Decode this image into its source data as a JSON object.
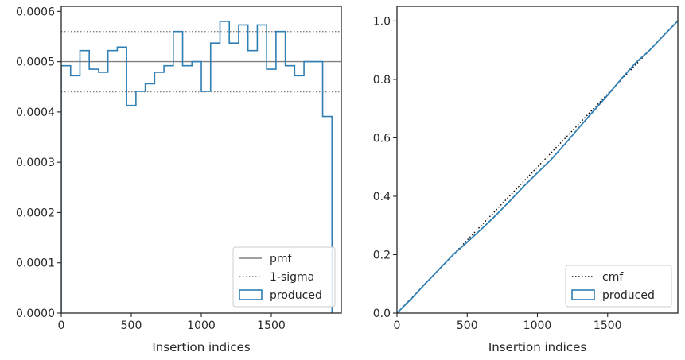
{
  "chart_data": [
    {
      "type": "step",
      "xlabel": "Insertion indices",
      "ylabel": "",
      "xlim": [
        0,
        2000
      ],
      "ylim": [
        0,
        0.00061
      ],
      "xticks": [
        0,
        500,
        1000,
        1500
      ],
      "xtick_labels": [
        "0",
        "500",
        "1000",
        "1500"
      ],
      "yticks": [
        0,
        0.0001,
        0.0002,
        0.0003,
        0.0004,
        0.0005,
        0.0006
      ],
      "ytick_labels": [
        "0.0000",
        "0.0001",
        "0.0002",
        "0.0003",
        "0.0004",
        "0.0005",
        "0.0006"
      ],
      "grid": false,
      "legend_position": "lower right",
      "reference_lines": [
        {
          "name": "pmf",
          "value": 0.0005,
          "color": "#808080",
          "style": "solid"
        },
        {
          "name": "1-sigma",
          "values": [
            0.00044,
            0.00056
          ],
          "color": "#808080",
          "style": "dotted"
        }
      ],
      "series": [
        {
          "name": "produced",
          "color": "#2f7fb5",
          "bin_width": 66.67,
          "values": [
            0.000492,
            0.000472,
            0.000522,
            0.000485,
            0.000479,
            0.000522,
            0.000529,
            0.000413,
            0.000441,
            0.000456,
            0.000479,
            0.000492,
            0.00056,
            0.000492,
            0.0005,
            0.000441,
            0.000537,
            0.00058,
            0.000537,
            0.000573,
            0.000522,
            0.000573,
            0.000485,
            0.00056,
            0.000492,
            0.000472,
            0.0005,
            0.0005,
            0.000391
          ]
        }
      ],
      "legend": [
        "pmf",
        "1-sigma",
        "produced"
      ]
    },
    {
      "type": "line",
      "xlabel": "Insertion indices",
      "ylabel": "",
      "xlim": [
        0,
        2000
      ],
      "ylim": [
        0,
        1.05
      ],
      "xticks": [
        0,
        500,
        1000,
        1500
      ],
      "xtick_labels": [
        "0",
        "500",
        "1000",
        "1500"
      ],
      "yticks": [
        0,
        0.2,
        0.4,
        0.6,
        0.8,
        1.0
      ],
      "ytick_labels": [
        "0.0",
        "0.2",
        "0.4",
        "0.6",
        "0.8",
        "1.0"
      ],
      "grid": false,
      "legend_position": "lower right",
      "series": [
        {
          "name": "cmf",
          "color": "#000000",
          "style": "dotted",
          "x": [
            0,
            2000
          ],
          "y": [
            0,
            1.0
          ]
        },
        {
          "name": "produced",
          "color": "#2f7fb5",
          "style": "step",
          "x": [
            0,
            100,
            200,
            300,
            400,
            500,
            600,
            700,
            800,
            900,
            1000,
            1100,
            1200,
            1300,
            1400,
            1500,
            1600,
            1700,
            1800,
            1900,
            2000
          ],
          "y": [
            0,
            0.048,
            0.1,
            0.15,
            0.2,
            0.243,
            0.287,
            0.333,
            0.382,
            0.433,
            0.48,
            0.527,
            0.581,
            0.637,
            0.692,
            0.746,
            0.803,
            0.857,
            0.9,
            0.951,
            1.0
          ]
        }
      ],
      "legend": [
        "cmf",
        "produced"
      ]
    }
  ]
}
